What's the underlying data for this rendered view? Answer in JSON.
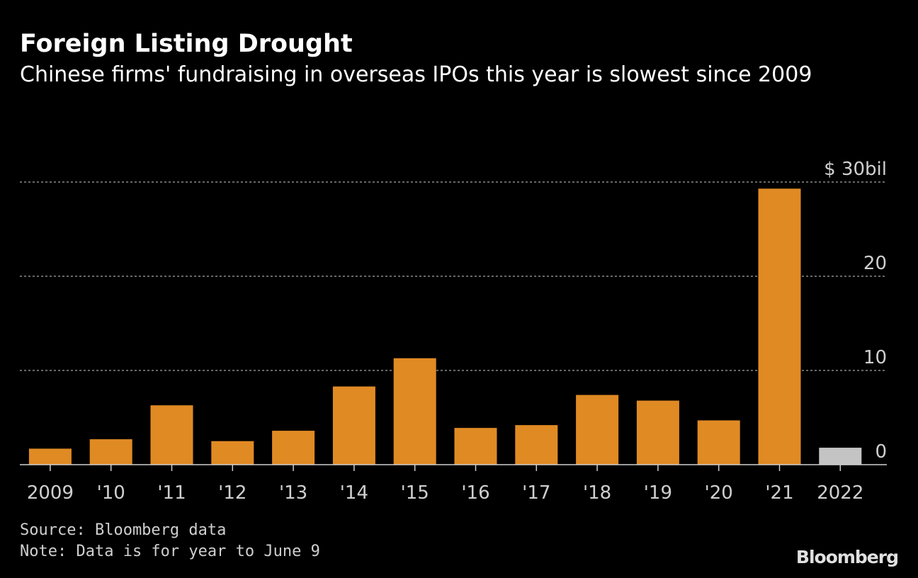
{
  "chart_data": {
    "type": "bar",
    "title": "Foreign Listing Drought",
    "subtitle": "Chinese firms' fundraising in overseas IPOs this year is slowest since 2009",
    "categories": [
      "2009",
      "'10",
      "'11",
      "'12",
      "'13",
      "'14",
      "'15",
      "'16",
      "'17",
      "'18",
      "'19",
      "'20",
      "'21",
      "2022"
    ],
    "values": [
      1.7,
      2.7,
      6.3,
      2.5,
      3.6,
      8.3,
      11.3,
      3.9,
      4.2,
      7.4,
      6.8,
      4.7,
      29.3,
      1.8
    ],
    "highlight_index": 13,
    "ylim": [
      0,
      30
    ],
    "yticks": [
      0,
      10,
      20,
      30
    ],
    "ytick_labels": [
      "0",
      "10",
      "20",
      "$ 30bil"
    ],
    "xlabel": "",
    "ylabel": "",
    "grid": true,
    "colors": {
      "bar": "#e08a24",
      "highlight": "#c4c4c4",
      "grid": "#8a8a8a",
      "axis": "#cfcfcf"
    }
  },
  "footer": {
    "source": "Source: Bloomberg data",
    "note": "Note: Data is for year to June 9",
    "logo": "Bloomberg"
  }
}
